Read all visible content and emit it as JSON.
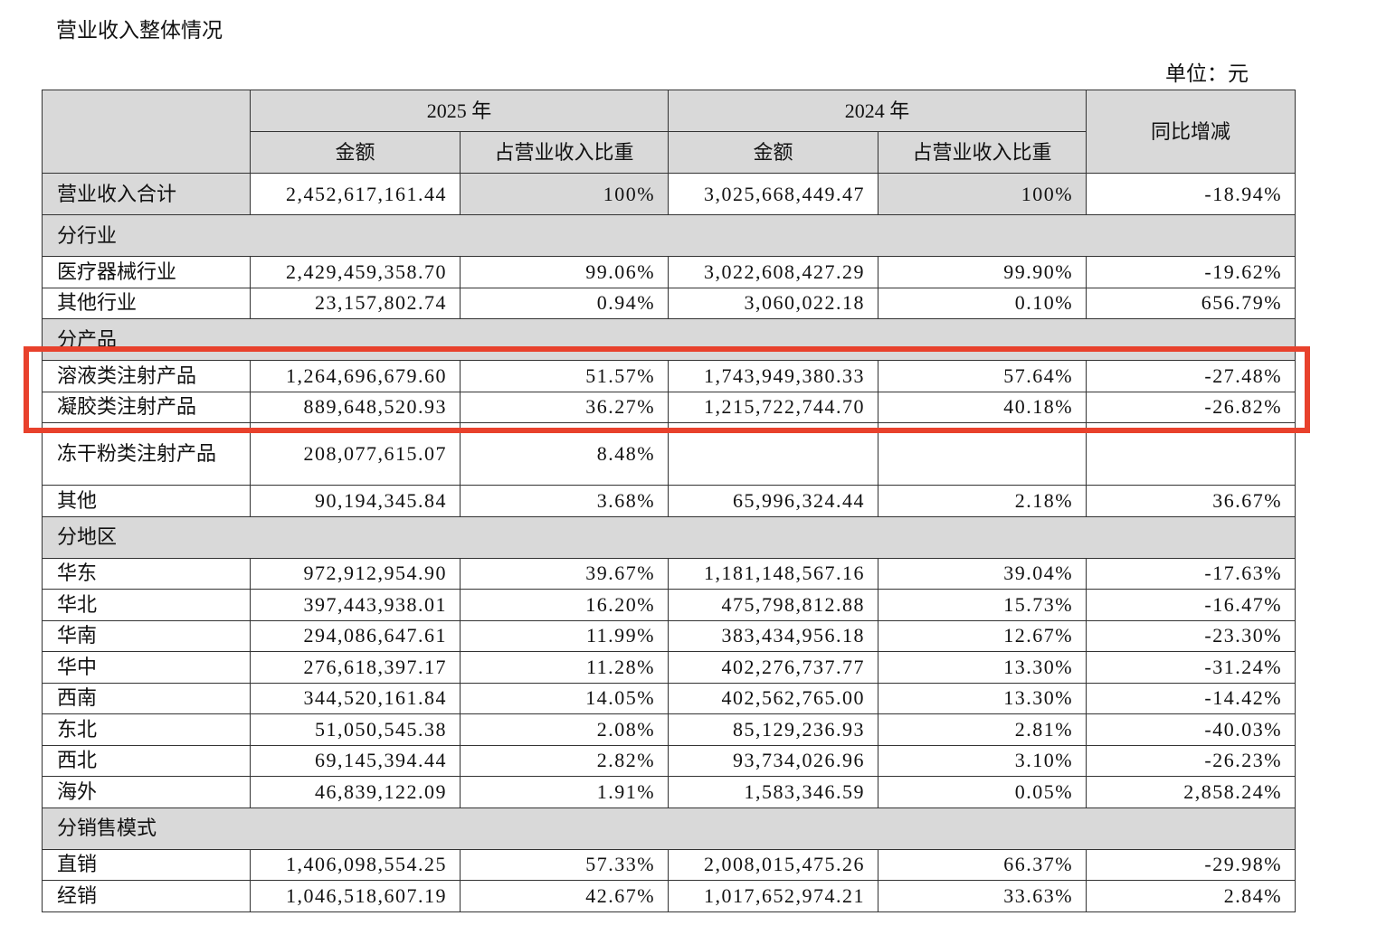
{
  "header": {
    "title": "营业收入整体情况",
    "unit": "单位：元"
  },
  "table": {
    "years": [
      "2025 年",
      "2024 年"
    ],
    "sub_headers": [
      "金额",
      "占营业收入比重",
      "金额",
      "占营业收入比重"
    ],
    "change_header": "同比增减",
    "rows": [
      {
        "label": "营业收入合计",
        "cells": [
          "2,452,617,161.44",
          "100%",
          "3,025,668,449.47",
          "100%",
          "-18.94%"
        ]
      },
      {
        "section": "分行业"
      },
      {
        "label": "医疗器械行业",
        "cells": [
          "2,429,459,358.70",
          "99.06%",
          "3,022,608,427.29",
          "99.90%",
          "-19.62%"
        ]
      },
      {
        "label": "其他行业",
        "cells": [
          "23,157,802.74",
          "0.94%",
          "3,060,022.18",
          "0.10%",
          "656.79%"
        ]
      },
      {
        "section": "分产品"
      },
      {
        "label": "溶液类注射产品",
        "cells": [
          "1,264,696,679.60",
          "51.57%",
          "1,743,949,380.33",
          "57.64%",
          "-27.48%"
        ]
      },
      {
        "label": "凝胶类注射产品",
        "cells": [
          "889,648,520.93",
          "36.27%",
          "1,215,722,744.70",
          "40.18%",
          "-26.82%"
        ]
      },
      {
        "label": "冻干粉类注射产品",
        "cells": [
          "208,077,615.07",
          "8.48%"
        ]
      },
      {
        "label": "其他",
        "cells": [
          "90,194,345.84",
          "3.68%",
          "65,996,324.44",
          "2.18%",
          "36.67%"
        ]
      },
      {
        "section": "分地区"
      },
      {
        "label": "华东",
        "cells": [
          "972,912,954.90",
          "39.67%",
          "1,181,148,567.16",
          "39.04%",
          "-17.63%"
        ]
      },
      {
        "label": "华北",
        "cells": [
          "397,443,938.01",
          "16.20%",
          "475,798,812.88",
          "15.73%",
          "-16.47%"
        ]
      },
      {
        "label": "华南",
        "cells": [
          "294,086,647.61",
          "11.99%",
          "383,434,956.18",
          "12.67%",
          "-23.30%"
        ]
      },
      {
        "label": "华中",
        "cells": [
          "276,618,397.17",
          "11.28%",
          "402,276,737.77",
          "13.30%",
          "-31.24%"
        ]
      },
      {
        "label": "西南",
        "cells": [
          "344,520,161.84",
          "14.05%",
          "402,562,765.00",
          "13.30%",
          "-14.42%"
        ]
      },
      {
        "label": "东北",
        "cells": [
          "51,050,545.38",
          "2.08%",
          "85,129,236.93",
          "2.81%",
          "-40.03%"
        ]
      },
      {
        "label": "西北",
        "cells": [
          "69,145,394.44",
          "2.82%",
          "93,734,026.96",
          "3.10%",
          "-26.23%"
        ]
      },
      {
        "label": "海外",
        "cells": [
          "46,839,122.09",
          "1.91%",
          "1,583,346.59",
          "0.05%",
          "2,858.24%"
        ]
      },
      {
        "section": "分销售模式"
      },
      {
        "label": "直销",
        "cells": [
          "1,406,098,554.25",
          "57.33%",
          "2,008,015,475.26",
          "66.37%",
          "-29.98%"
        ]
      },
      {
        "label": "经销",
        "cells": [
          "1,046,518,607.19",
          "42.67%",
          "1,017,652,974.21",
          "33.63%",
          "2.84%"
        ]
      }
    ]
  }
}
